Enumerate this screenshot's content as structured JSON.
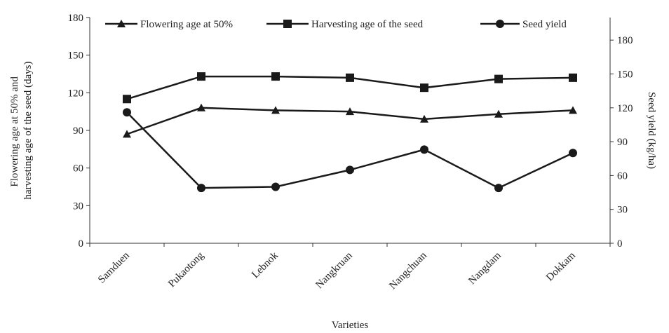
{
  "chart_data": {
    "type": "line",
    "xlabel": "Varieties",
    "ylabel_left": [
      "Flowering age at 50% and",
      "harvesting age of the seed (days)"
    ],
    "ylabel_right": "Seed yield (kg/ha)",
    "categories": [
      "Samduen",
      "Pukaotong",
      "Lebnok",
      "Nangkruan",
      "Nangchuan",
      "Nangdam",
      "Dokkam"
    ],
    "y_left": {
      "min": 0,
      "max": 180,
      "ticks": [
        0,
        30,
        60,
        90,
        120,
        150,
        180
      ]
    },
    "y_right": {
      "min": 0,
      "max": 200,
      "ticks": [
        0,
        30,
        60,
        90,
        120,
        150,
        180
      ]
    },
    "legend_position": "top",
    "grid": false,
    "series": [
      {
        "name": "Flowering age at 50%",
        "axis": "left",
        "marker": "triangle",
        "values": [
          87,
          108,
          106,
          105,
          99,
          103,
          106
        ]
      },
      {
        "name": "Harvesting age of the seed",
        "axis": "left",
        "marker": "square",
        "values": [
          115,
          133,
          133,
          132,
          124,
          131,
          132
        ]
      },
      {
        "name": "Seed yield",
        "axis": "right",
        "marker": "circle",
        "values": [
          116,
          49,
          50,
          65,
          83,
          49,
          80
        ]
      }
    ],
    "line_color": "#1a1a1a"
  }
}
